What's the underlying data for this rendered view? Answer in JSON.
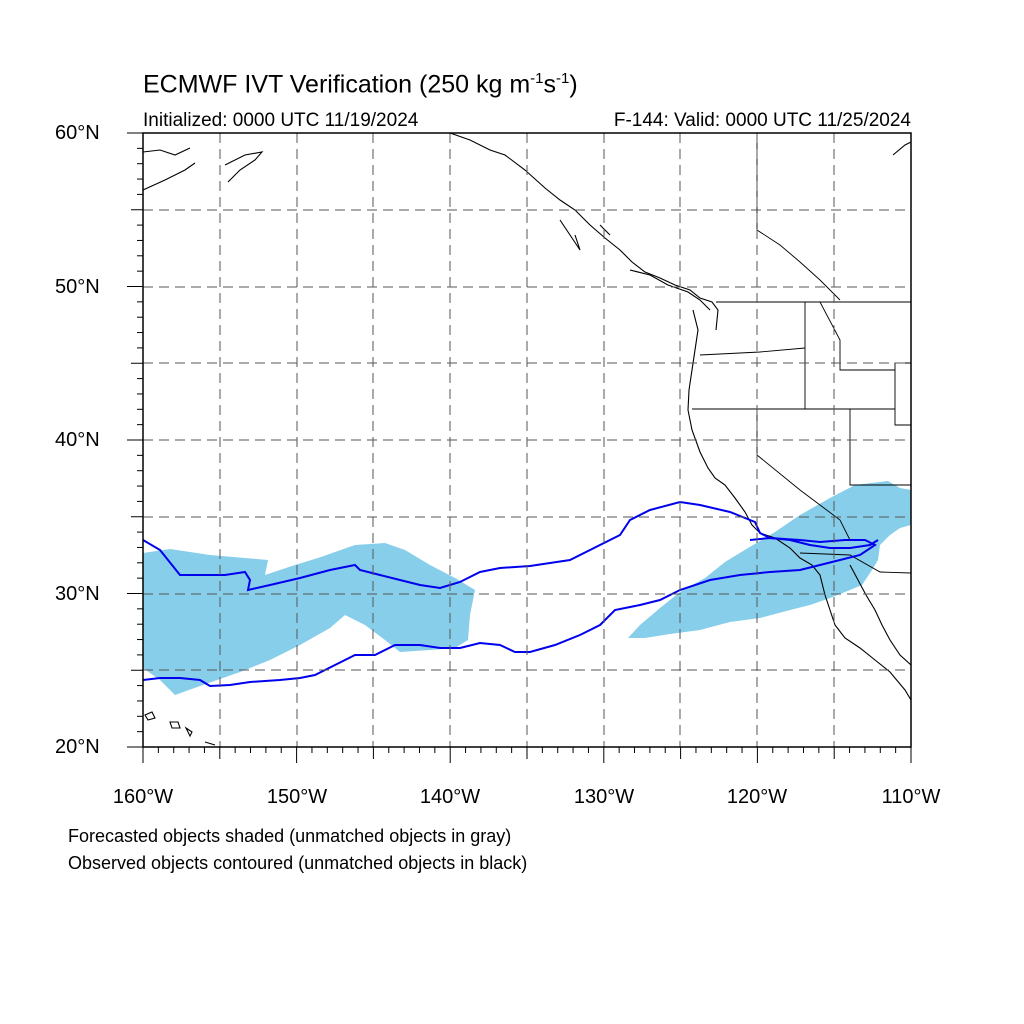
{
  "header": {
    "title_main": "ECMWF IVT Verification (250 kg m",
    "title_exp1": "-1",
    "title_mid": "s",
    "title_exp2": "-1",
    "title_end": ")",
    "initialized": "Initialized: 0000 UTC 11/19/2024",
    "valid": "F-144: Valid: 0000 UTC 11/25/2024"
  },
  "axes": {
    "lat_labels": [
      "60°N",
      "50°N",
      "40°N",
      "30°N",
      "20°N"
    ],
    "lon_labels": [
      "160°W",
      "150°W",
      "140°W",
      "130°W",
      "120°W",
      "110°W"
    ],
    "lat_range": [
      20,
      60
    ],
    "lon_range": [
      -160,
      -110
    ],
    "grid": true
  },
  "legend": {
    "line1": "Forecasted objects shaded (unmatched objects in gray)",
    "line2": "Observed objects contoured (unmatched objects in black)"
  },
  "colors": {
    "forecast_fill": "#87ceeb",
    "observed_contour": "#0000ee",
    "coastline": "#000000",
    "grid": "#555555"
  }
}
